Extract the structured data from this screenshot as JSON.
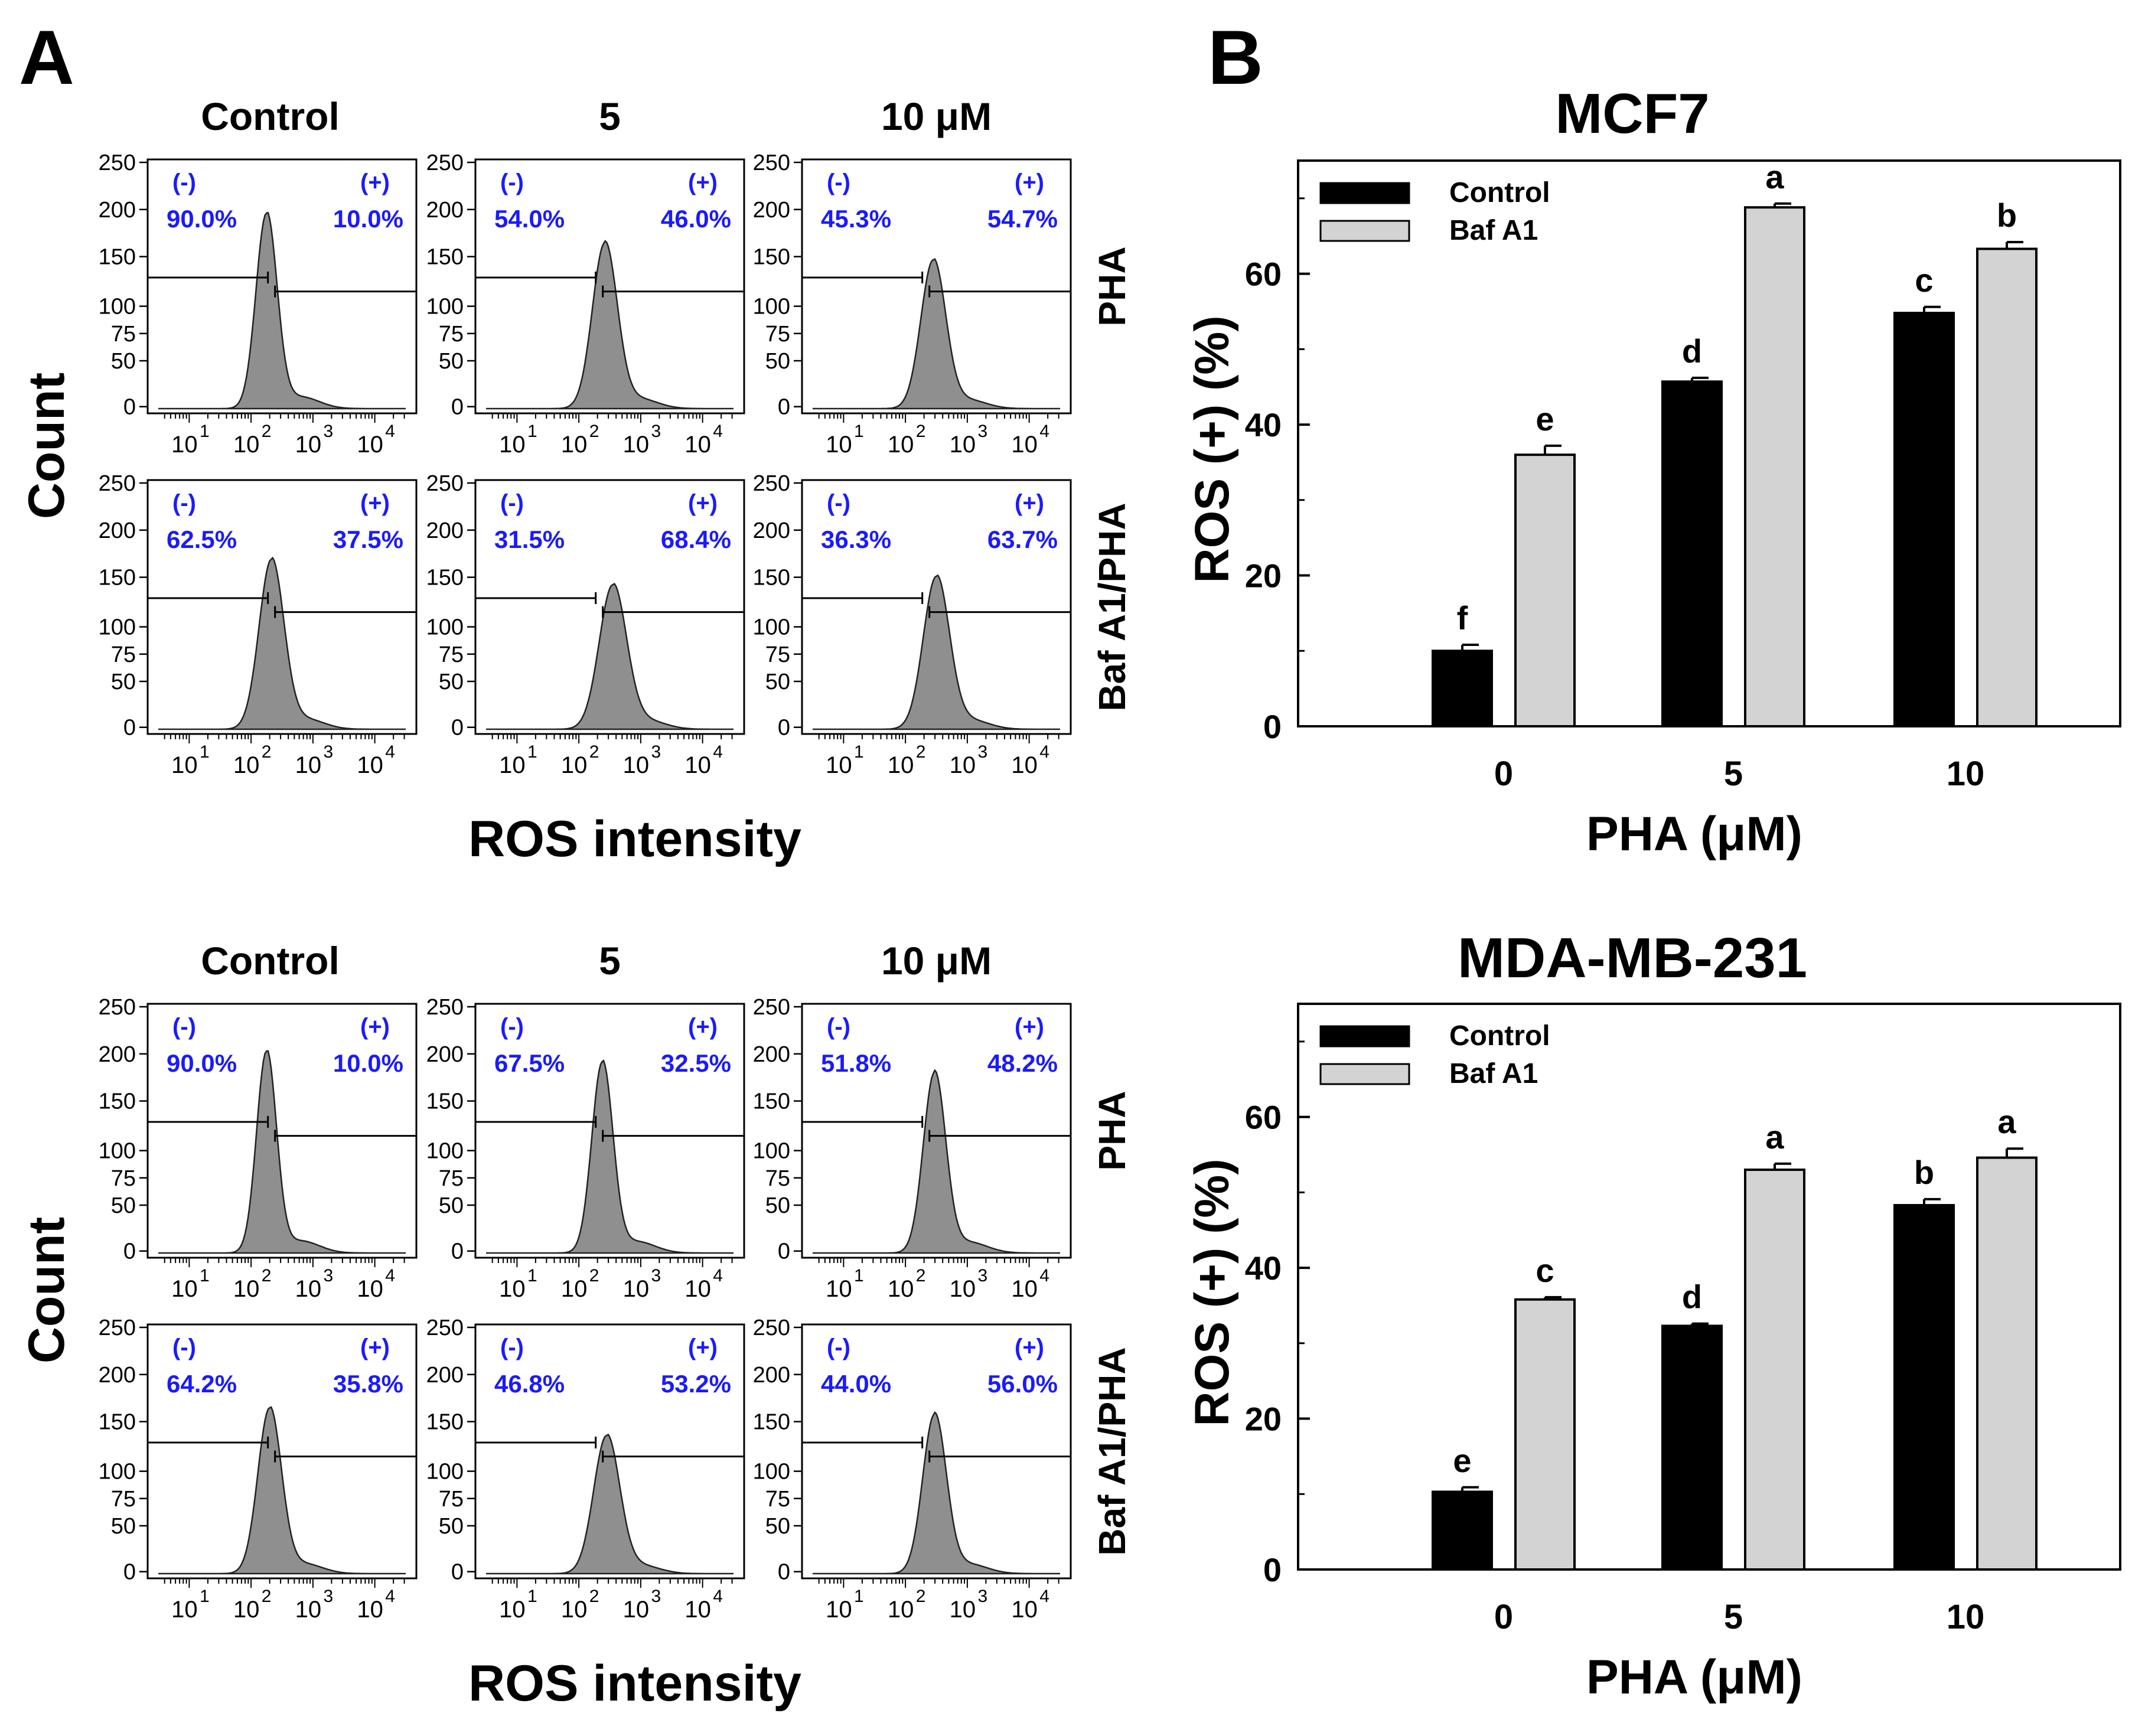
{
  "panel_labels": {
    "a": "A",
    "b": "B"
  },
  "flow": {
    "column_headers": [
      "Control",
      "5",
      "10 μM"
    ],
    "row_labels": [
      "PHA",
      "Baf A1/PHA"
    ],
    "y_axis_label": "Count",
    "x_axis_label": "ROS intensity",
    "y_ticks": [
      "250",
      "200",
      "150",
      "100",
      "75",
      "50",
      "0"
    ],
    "x_tick_bases": [
      "10",
      "10",
      "10",
      "10"
    ],
    "x_tick_exponents": [
      "1",
      "2",
      "3",
      "4"
    ],
    "gate_negative_label": "(-)",
    "gate_positive_label": "(+)",
    "blocks": [
      {
        "name": "MCF7",
        "rows": [
          {
            "cells": [
              {
                "neg": "90.0%",
                "pos": "10.0%",
                "peak_log": 2.25,
                "peak_height": 0.92,
                "width": 0.17
              },
              {
                "neg": "54.0%",
                "pos": "46.0%",
                "peak_log": 2.42,
                "peak_height": 0.78,
                "width": 0.2
              },
              {
                "neg": "45.3%",
                "pos": "54.7%",
                "peak_log": 2.45,
                "peak_height": 0.7,
                "width": 0.2
              }
            ]
          },
          {
            "cells": [
              {
                "neg": "62.5%",
                "pos": "37.5%",
                "peak_log": 2.33,
                "peak_height": 0.8,
                "width": 0.2
              },
              {
                "neg": "31.5%",
                "pos": "68.4%",
                "peak_log": 2.55,
                "peak_height": 0.68,
                "width": 0.22
              },
              {
                "neg": "36.3%",
                "pos": "63.7%",
                "peak_log": 2.5,
                "peak_height": 0.72,
                "width": 0.21
              }
            ]
          }
        ]
      },
      {
        "name": "MDA-MB-231",
        "rows": [
          {
            "cells": [
              {
                "neg": "90.0%",
                "pos": "10.0%",
                "peak_log": 2.25,
                "peak_height": 0.95,
                "width": 0.16
              },
              {
                "neg": "67.5%",
                "pos": "32.5%",
                "peak_log": 2.38,
                "peak_height": 0.9,
                "width": 0.17
              },
              {
                "neg": "51.8%",
                "pos": "48.2%",
                "peak_log": 2.47,
                "peak_height": 0.85,
                "width": 0.18
              }
            ]
          },
          {
            "cells": [
              {
                "neg": "64.2%",
                "pos": "35.8%",
                "peak_log": 2.3,
                "peak_height": 0.78,
                "width": 0.19
              },
              {
                "neg": "46.8%",
                "pos": "53.2%",
                "peak_log": 2.45,
                "peak_height": 0.65,
                "width": 0.21
              },
              {
                "neg": "44.0%",
                "pos": "56.0%",
                "peak_log": 2.47,
                "peak_height": 0.75,
                "width": 0.19
              }
            ]
          }
        ]
      }
    ]
  },
  "chart_data": [
    {
      "type": "bar",
      "title": "MCF7",
      "xlabel": "PHA (μM)",
      "ylabel": "ROS (+) (%)",
      "categories": [
        "0",
        "5",
        "10"
      ],
      "ylim": [
        0,
        75
      ],
      "yticks": [
        0,
        20,
        40,
        60
      ],
      "series": [
        {
          "name": "Control",
          "values": [
            10.0,
            45.7,
            54.8
          ],
          "errors": [
            0.8,
            0.5,
            0.8
          ],
          "letters": [
            "f",
            "d",
            "c"
          ]
        },
        {
          "name": "Baf A1",
          "values": [
            36.0,
            68.8,
            63.3
          ],
          "errors": [
            1.2,
            0.5,
            0.9
          ],
          "letters": [
            "e",
            "a",
            "b"
          ]
        }
      ]
    },
    {
      "type": "bar",
      "title": "MDA-MB-231",
      "xlabel": "PHA (μM)",
      "ylabel": "ROS (+) (%)",
      "categories": [
        "0",
        "5",
        "10"
      ],
      "ylim": [
        0,
        75
      ],
      "yticks": [
        0,
        20,
        40,
        60
      ],
      "series": [
        {
          "name": "Control",
          "values": [
            10.3,
            32.3,
            48.3
          ],
          "errors": [
            0.6,
            0.3,
            0.8
          ],
          "letters": [
            "e",
            "d",
            "b"
          ]
        },
        {
          "name": "Baf A1",
          "values": [
            35.8,
            53.0,
            54.6
          ],
          "errors": [
            0.3,
            0.8,
            1.2
          ],
          "letters": [
            "c",
            "a",
            "a"
          ]
        }
      ]
    }
  ],
  "colors": {
    "control_fill": "#000000",
    "baf_fill": "#d3d3d3",
    "histogram_fill": "#8f8f8f",
    "gate_text": "#1a1aff",
    "axis": "#000000"
  }
}
